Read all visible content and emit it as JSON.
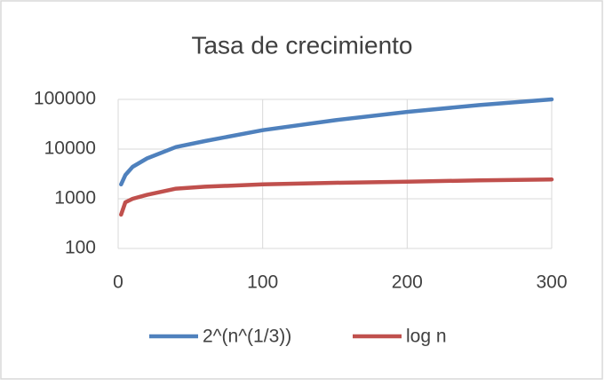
{
  "chart_data": {
    "type": "line",
    "title": "Tasa de crecimiento",
    "x": [
      2,
      5,
      10,
      20,
      40,
      60,
      100,
      150,
      200,
      250,
      300
    ],
    "series": [
      {
        "name": "2^(n^(1/3))",
        "color": "#4f81bd",
        "values": [
          1950,
          3000,
          4400,
          6500,
          11000,
          14500,
          24000,
          38000,
          56000,
          77000,
          100000
        ]
      },
      {
        "name": "log n",
        "color": "#c0504d",
        "values": [
          480,
          850,
          1000,
          1200,
          1600,
          1750,
          1950,
          2100,
          2200,
          2350,
          2450
        ]
      }
    ],
    "xlim": [
      0,
      300
    ],
    "xticks": [
      0,
      100,
      200,
      300
    ],
    "ylim": [
      100,
      100000
    ],
    "yticks": [
      100,
      1000,
      10000,
      100000
    ],
    "ylog": true,
    "grid": true,
    "legend": "bottom"
  }
}
